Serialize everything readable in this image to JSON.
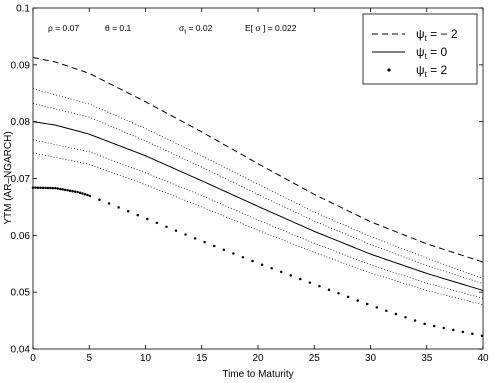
{
  "chart_data": {
    "type": "line",
    "xlabel": "Time to Maturity",
    "ylabel": "YTM (AR–NGARCH)",
    "xlim": [
      0,
      40
    ],
    "ylim": [
      0.04,
      0.1
    ],
    "xticks": [
      "0",
      "5",
      "10",
      "15",
      "20",
      "25",
      "30",
      "35",
      "40"
    ],
    "yticks": [
      "0.04",
      "0.05",
      "0.06",
      "0.07",
      "0.08",
      "0.09",
      "0.1"
    ],
    "grid": false,
    "legend_position": "top-right",
    "annotations": [
      {
        "symbol": "ρ",
        "value": " = 0.07"
      },
      {
        "symbol": "θ",
        "value": " = 0.1"
      },
      {
        "symbol": "σ",
        "sub": "t",
        "value": " = 0.02"
      },
      {
        "symbol": "E[ σ ]",
        "value": " = 0.022"
      }
    ],
    "series": [
      {
        "legend_symbol": "ψ",
        "legend_sub": "t",
        "legend_value": " = − 2",
        "style": "dashed",
        "x": [
          0,
          2,
          5,
          10,
          15,
          20,
          25,
          30,
          35,
          40
        ],
        "y": [
          0.0913,
          0.0905,
          0.0885,
          0.0835,
          0.0782,
          0.0726,
          0.0672,
          0.0624,
          0.0585,
          0.0553
        ]
      },
      {
        "legend_symbol": "ψ",
        "legend_sub": "t",
        "legend_value": " = 0",
        "style": "solid",
        "x": [
          0,
          2,
          5,
          10,
          15,
          20,
          25,
          30,
          35,
          40
        ],
        "y": [
          0.08,
          0.0794,
          0.0778,
          0.074,
          0.0696,
          0.0651,
          0.0607,
          0.0567,
          0.0533,
          0.0503
        ]
      },
      {
        "legend_symbol": "ψ",
        "legend_sub": "t",
        "legend_value": " = 2",
        "style": "dots",
        "x": [
          0,
          2,
          4,
          5,
          10,
          15,
          20,
          25,
          30,
          35,
          40
        ],
        "y": [
          0.0684,
          0.0683,
          0.0676,
          0.067,
          0.063,
          0.059,
          0.0551,
          0.0514,
          0.0477,
          0.0443,
          0.0423
        ]
      }
    ],
    "bands": [
      {
        "style": "dotted",
        "x": [
          0,
          5,
          10,
          15,
          20,
          25,
          30,
          35,
          40
        ],
        "y": [
          0.0858,
          0.0831,
          0.0788,
          0.074,
          0.069,
          0.0641,
          0.0598,
          0.056,
          0.0524
        ]
      },
      {
        "style": "dotted",
        "x": [
          0,
          5,
          10,
          15,
          20,
          25,
          30,
          35,
          40
        ],
        "y": [
          0.0832,
          0.0808,
          0.0766,
          0.072,
          0.0672,
          0.0625,
          0.0584,
          0.0547,
          0.0515
        ]
      },
      {
        "style": "dotted",
        "x": [
          0,
          5,
          10,
          15,
          20,
          25,
          30,
          35,
          40
        ],
        "y": [
          0.0768,
          0.0747,
          0.071,
          0.067,
          0.0627,
          0.0586,
          0.0548,
          0.0516,
          0.0489
        ]
      },
      {
        "style": "dotted",
        "x": [
          0,
          5,
          10,
          15,
          20,
          25,
          30,
          35,
          40
        ],
        "y": [
          0.0745,
          0.0725,
          0.0689,
          0.065,
          0.0609,
          0.057,
          0.0534,
          0.0503,
          0.0478
        ]
      }
    ]
  }
}
